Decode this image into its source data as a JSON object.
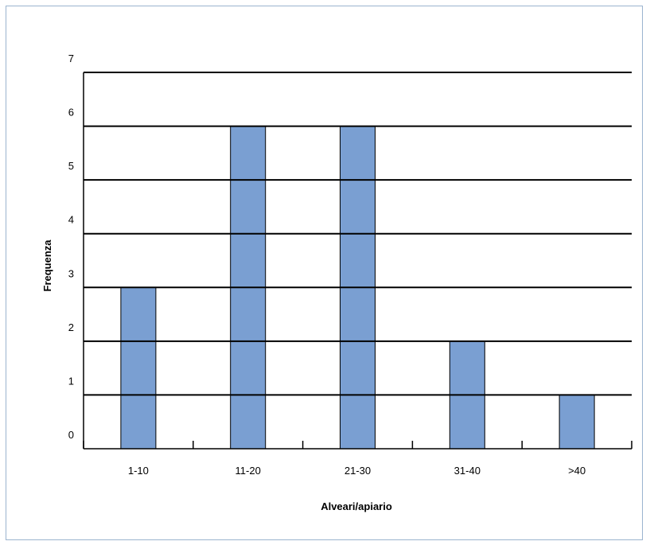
{
  "chart_data": {
    "type": "bar",
    "title": "",
    "xlabel": "Alveari/apiario",
    "ylabel": "Frequenza",
    "categories": [
      "1-10",
      "11-20",
      "21-30",
      "31-40",
      ">40"
    ],
    "values": [
      3,
      6,
      6,
      2,
      1
    ],
    "ylim": [
      0,
      7
    ],
    "yticks": [
      "0",
      "1",
      "2",
      "3",
      "4",
      "5",
      "6",
      "7"
    ],
    "grid": true,
    "bar_color": "#7a9fd2",
    "bar_edge_color": "#000000",
    "legend": "none"
  }
}
